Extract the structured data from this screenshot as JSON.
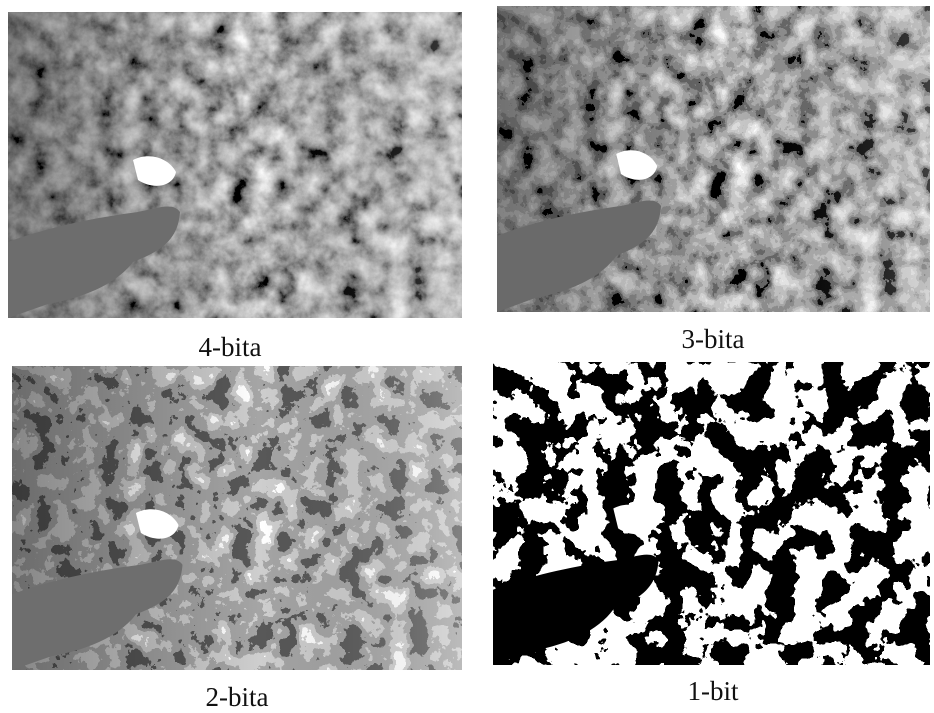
{
  "panels": [
    {
      "caption": "4-bita"
    },
    {
      "caption": "3-bita"
    },
    {
      "caption": "2-bita"
    },
    {
      "caption": "1-bit"
    }
  ]
}
